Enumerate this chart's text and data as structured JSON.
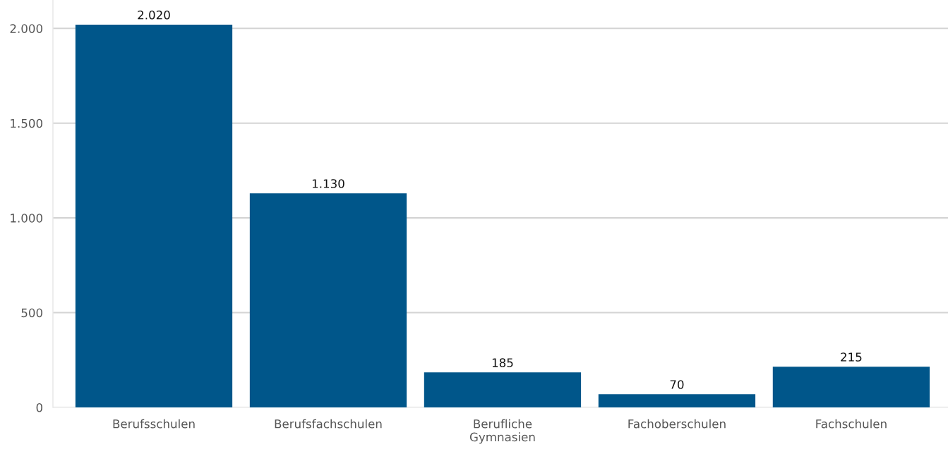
{
  "chart_data": {
    "type": "bar",
    "categories": [
      "Berufsschulen",
      "Berufsfachschulen",
      "Berufliche\nGymnasien",
      "Fachoberschulen",
      "Fachschulen"
    ],
    "values": [
      2020,
      1130,
      185,
      70,
      215
    ],
    "value_labels": [
      "2.020",
      "1.130",
      "185",
      "70",
      "215"
    ],
    "color": "#00568a",
    "ylim": [
      0,
      2150
    ],
    "yticks": [
      0,
      500,
      {
        "value": 1000,
        "label": "1.000"
      },
      {
        "value": 1500,
        "label": "1.500"
      },
      {
        "value": 2000,
        "label": "2.000"
      }
    ],
    "grid": "y"
  }
}
